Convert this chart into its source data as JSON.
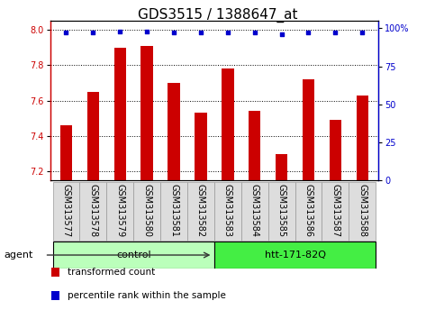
{
  "title": "GDS3515 / 1388647_at",
  "samples": [
    "GSM313577",
    "GSM313578",
    "GSM313579",
    "GSM313580",
    "GSM313581",
    "GSM313582",
    "GSM313583",
    "GSM313584",
    "GSM313585",
    "GSM313586",
    "GSM313587",
    "GSM313588"
  ],
  "bar_values": [
    7.46,
    7.65,
    7.9,
    7.91,
    7.7,
    7.53,
    7.78,
    7.54,
    7.3,
    7.72,
    7.49,
    7.63
  ],
  "percentile_values": [
    97,
    97,
    98,
    98,
    97,
    97,
    97,
    97,
    96,
    97,
    97,
    97
  ],
  "ylim_left": [
    7.15,
    8.05
  ],
  "ylim_right": [
    0,
    105
  ],
  "yticks_left": [
    7.2,
    7.4,
    7.6,
    7.8,
    8.0
  ],
  "yticks_right": [
    0,
    25,
    50,
    75,
    100
  ],
  "yticklabels_right": [
    "0",
    "25",
    "50",
    "75",
    "100%"
  ],
  "bar_color": "#cc0000",
  "percentile_color": "#0000cc",
  "bar_bottom": 7.15,
  "groups": [
    {
      "label": "control",
      "start": 0,
      "end": 6,
      "color": "#bbffbb"
    },
    {
      "label": "htt-171-82Q",
      "start": 6,
      "end": 12,
      "color": "#44ee44"
    }
  ],
  "agent_label": "agent",
  "legend_items": [
    {
      "label": "transformed count",
      "color": "#cc0000"
    },
    {
      "label": "percentile rank within the sample",
      "color": "#0000cc"
    }
  ],
  "bg_color": "#ffffff",
  "tick_label_bg": "#dddddd",
  "grid_color": "#000000",
  "title_fontsize": 11,
  "tick_fontsize": 7,
  "label_fontsize": 8,
  "legend_fontsize": 7.5
}
